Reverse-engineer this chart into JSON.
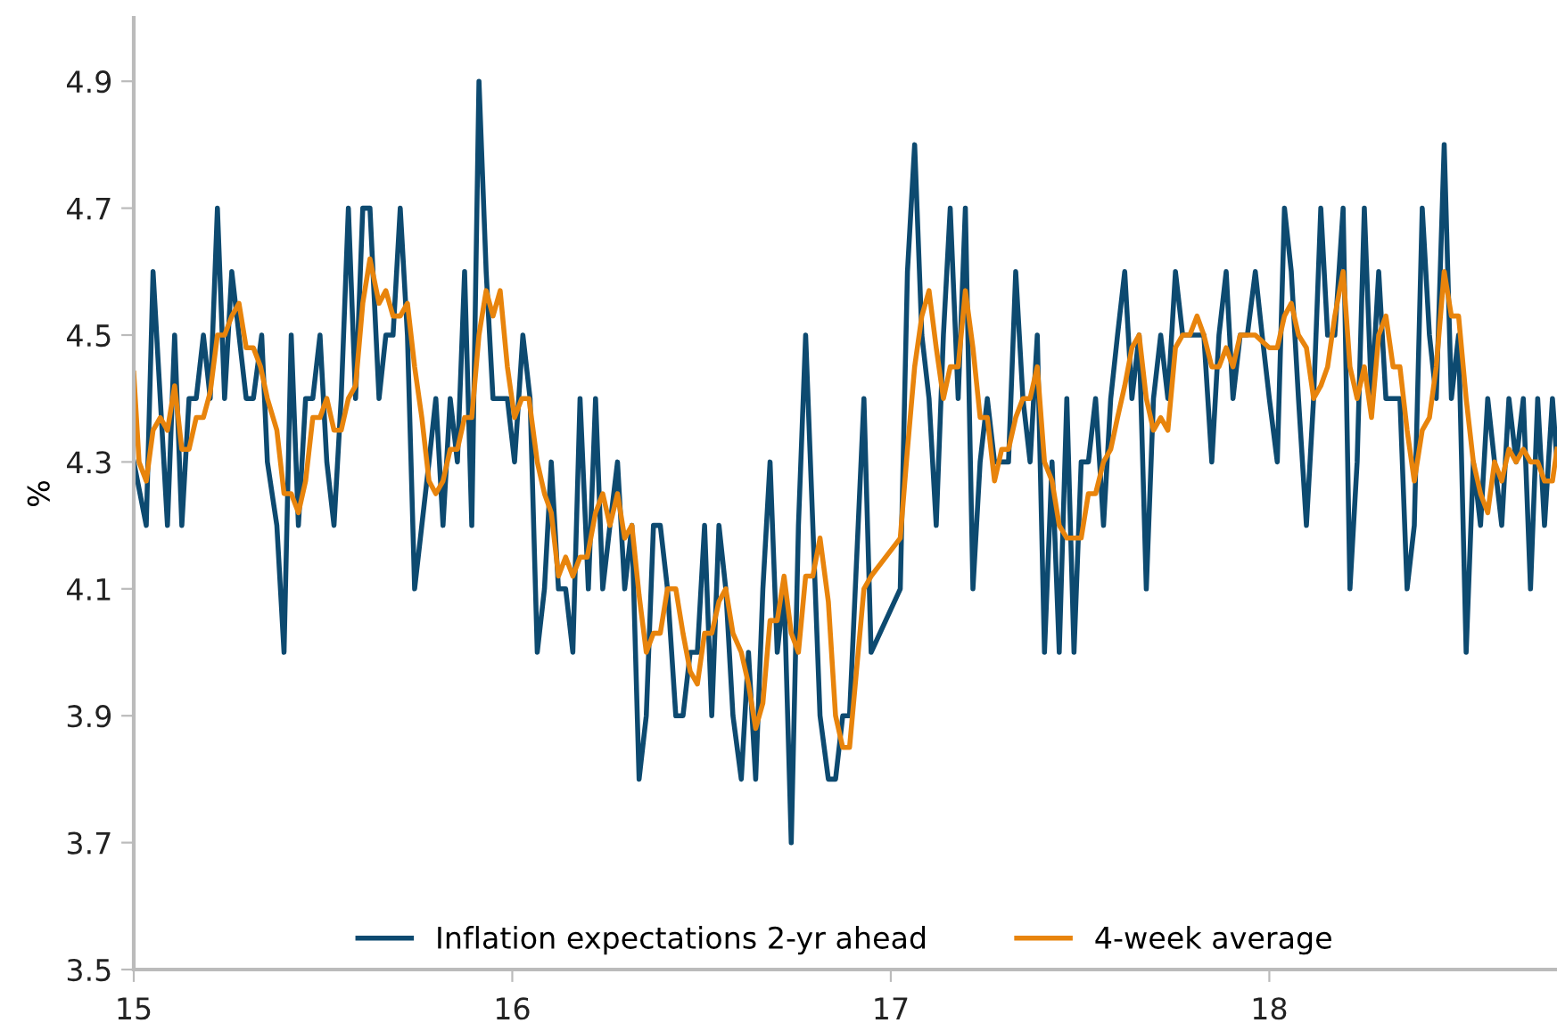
{
  "chart_data": {
    "type": "line",
    "ylabel": "%",
    "xlim": [
      15,
      18.76
    ],
    "xticks": [
      15,
      16,
      17,
      18
    ],
    "ylim": [
      3.5,
      5.0
    ],
    "yticks": [
      3.5,
      3.7,
      3.9,
      4.1,
      4.3,
      4.5,
      4.7,
      4.9
    ],
    "grid": false,
    "legend": "bottom",
    "marker": "none",
    "line_style": "solid",
    "series": [
      {
        "name": "Inflation expectations 2-yr ahead",
        "color": "#0d4a70",
        "x": [
          15.0,
          15.033,
          15.051,
          15.089,
          15.108,
          15.127,
          15.146,
          15.165,
          15.184,
          15.202,
          15.221,
          15.24,
          15.259,
          15.278,
          15.297,
          15.316,
          15.338,
          15.353,
          15.378,
          15.397,
          15.416,
          15.435,
          15.454,
          15.473,
          15.492,
          15.51,
          15.529,
          15.548,
          15.567,
          15.586,
          15.605,
          15.624,
          15.648,
          15.666,
          15.685,
          15.704,
          15.723,
          15.742,
          15.761,
          15.78,
          15.798,
          15.817,
          15.836,
          15.855,
          15.874,
          15.893,
          15.912,
          15.931,
          15.949,
          15.968,
          15.987,
          16.006,
          16.028,
          16.047,
          16.066,
          16.085,
          16.103,
          16.122,
          16.141,
          16.16,
          16.179,
          16.201,
          16.22,
          16.239,
          16.258,
          16.278,
          16.297,
          16.316,
          16.335,
          16.354,
          16.373,
          16.391,
          16.41,
          16.432,
          16.451,
          16.47,
          16.489,
          16.508,
          16.527,
          16.546,
          16.564,
          16.583,
          16.605,
          16.624,
          16.643,
          16.662,
          16.681,
          16.7,
          16.718,
          16.737,
          16.756,
          16.775,
          16.794,
          16.813,
          16.835,
          16.854,
          16.873,
          16.891,
          16.929,
          16.948,
          17.025,
          17.044,
          17.063,
          17.082,
          17.101,
          17.12,
          17.139,
          17.157,
          17.178,
          17.197,
          17.217,
          17.236,
          17.255,
          17.274,
          17.293,
          17.311,
          17.33,
          17.349,
          17.368,
          17.387,
          17.406,
          17.426,
          17.445,
          17.465,
          17.484,
          17.503,
          17.522,
          17.541,
          17.562,
          17.581,
          17.599,
          17.618,
          17.637,
          17.656,
          17.675,
          17.694,
          17.713,
          17.732,
          17.752,
          17.771,
          17.79,
          17.809,
          17.827,
          17.848,
          17.867,
          17.886,
          17.904,
          17.923,
          17.942,
          17.963,
          17.981,
          18.0,
          18.021,
          18.04,
          18.058,
          18.077,
          18.098,
          18.117,
          18.136,
          18.154,
          18.173,
          18.195,
          18.213,
          18.232,
          18.251,
          18.27,
          18.289,
          18.308,
          18.327,
          18.345,
          18.364,
          18.383,
          18.404,
          18.423,
          18.441,
          18.462,
          18.481,
          18.5,
          18.52,
          18.539,
          18.558,
          18.577,
          18.595,
          18.614,
          18.633,
          18.652,
          18.671,
          18.69,
          18.709,
          18.727,
          18.748,
          18.76
        ],
        "values": [
          4.3,
          4.2,
          4.6,
          4.2,
          4.5,
          4.2,
          4.4,
          4.4,
          4.5,
          4.4,
          4.7,
          4.4,
          4.6,
          4.5,
          4.4,
          4.4,
          4.5,
          4.3,
          4.2,
          4.0,
          4.5,
          4.2,
          4.4,
          4.4,
          4.5,
          4.3,
          4.2,
          4.4,
          4.7,
          4.4,
          4.7,
          4.7,
          4.4,
          4.5,
          4.5,
          4.7,
          4.5,
          4.1,
          4.2,
          4.3,
          4.4,
          4.2,
          4.4,
          4.3,
          4.6,
          4.2,
          4.9,
          4.6,
          4.4,
          4.4,
          4.4,
          4.3,
          4.5,
          4.4,
          4.0,
          4.1,
          4.3,
          4.1,
          4.1,
          4.0,
          4.4,
          4.1,
          4.4,
          4.1,
          4.2,
          4.3,
          4.1,
          4.2,
          3.8,
          3.9,
          4.2,
          4.2,
          4.1,
          3.9,
          3.9,
          4.0,
          4.0,
          4.2,
          3.9,
          4.2,
          4.1,
          3.9,
          3.8,
          4.0,
          3.8,
          4.1,
          4.3,
          4.0,
          4.1,
          3.7,
          4.2,
          4.5,
          4.2,
          3.9,
          3.8,
          3.8,
          3.9,
          3.9,
          4.4,
          4.0,
          4.1,
          4.6,
          4.8,
          4.5,
          4.4,
          4.2,
          4.5,
          4.7,
          4.4,
          4.7,
          4.1,
          4.3,
          4.4,
          4.3,
          4.3,
          4.3,
          4.6,
          4.4,
          4.3,
          4.5,
          4.0,
          4.3,
          4.0,
          4.4,
          4.0,
          4.3,
          4.3,
          4.4,
          4.2,
          4.4,
          4.5,
          4.6,
          4.4,
          4.5,
          4.1,
          4.4,
          4.5,
          4.4,
          4.6,
          4.5,
          4.5,
          4.5,
          4.5,
          4.3,
          4.5,
          4.6,
          4.4,
          4.5,
          4.5,
          4.6,
          4.5,
          4.4,
          4.3,
          4.7,
          4.6,
          4.4,
          4.2,
          4.4,
          4.7,
          4.5,
          4.5,
          4.7,
          4.1,
          4.3,
          4.7,
          4.4,
          4.6,
          4.4,
          4.4,
          4.4,
          4.1,
          4.2,
          4.7,
          4.5,
          4.4,
          4.8,
          4.4,
          4.5,
          4.0,
          4.3,
          4.2,
          4.4,
          4.3,
          4.2,
          4.4,
          4.3,
          4.4,
          4.1,
          4.4,
          4.2,
          4.4,
          4.3
        ]
      },
      {
        "name": "4-week average",
        "color": "#e8840c",
        "x": [
          15.0,
          15.014,
          15.033,
          15.051,
          15.07,
          15.089,
          15.108,
          15.127,
          15.146,
          15.165,
          15.184,
          15.202,
          15.221,
          15.24,
          15.259,
          15.278,
          15.297,
          15.316,
          15.335,
          15.353,
          15.378,
          15.397,
          15.416,
          15.435,
          15.454,
          15.473,
          15.492,
          15.51,
          15.529,
          15.548,
          15.567,
          15.586,
          15.605,
          15.624,
          15.648,
          15.666,
          15.685,
          15.704,
          15.723,
          15.742,
          15.761,
          15.78,
          15.798,
          15.817,
          15.836,
          15.855,
          15.874,
          15.893,
          15.912,
          15.931,
          15.949,
          15.968,
          15.987,
          16.006,
          16.025,
          16.044,
          16.066,
          16.085,
          16.103,
          16.122,
          16.141,
          16.16,
          16.179,
          16.198,
          16.22,
          16.239,
          16.258,
          16.278,
          16.297,
          16.316,
          16.335,
          16.354,
          16.373,
          16.391,
          16.41,
          16.432,
          16.451,
          16.47,
          16.489,
          16.508,
          16.527,
          16.546,
          16.564,
          16.583,
          16.605,
          16.624,
          16.643,
          16.662,
          16.681,
          16.7,
          16.718,
          16.737,
          16.756,
          16.775,
          16.794,
          16.813,
          16.835,
          16.854,
          16.873,
          16.891,
          16.929,
          16.948,
          17.025,
          17.044,
          17.063,
          17.082,
          17.101,
          17.12,
          17.139,
          17.157,
          17.178,
          17.197,
          17.217,
          17.236,
          17.255,
          17.274,
          17.293,
          17.311,
          17.33,
          17.349,
          17.368,
          17.387,
          17.406,
          17.426,
          17.445,
          17.465,
          17.484,
          17.503,
          17.522,
          17.541,
          17.562,
          17.581,
          17.599,
          17.618,
          17.637,
          17.656,
          17.675,
          17.694,
          17.713,
          17.732,
          17.752,
          17.771,
          17.79,
          17.809,
          17.827,
          17.848,
          17.867,
          17.886,
          17.904,
          17.923,
          17.942,
          17.963,
          17.981,
          18.0,
          18.021,
          18.04,
          18.058,
          18.077,
          18.098,
          18.117,
          18.136,
          18.154,
          18.173,
          18.195,
          18.213,
          18.232,
          18.251,
          18.27,
          18.289,
          18.308,
          18.327,
          18.345,
          18.364,
          18.383,
          18.404,
          18.423,
          18.441,
          18.462,
          18.481,
          18.5,
          18.52,
          18.539,
          18.558,
          18.577,
          18.595,
          18.614,
          18.633,
          18.652,
          18.671,
          18.69,
          18.709,
          18.727,
          18.748,
          18.76
        ],
        "values": [
          4.44,
          4.3,
          4.27,
          4.35,
          4.37,
          4.35,
          4.42,
          4.32,
          4.32,
          4.37,
          4.37,
          4.41,
          4.5,
          4.5,
          4.53,
          4.55,
          4.48,
          4.48,
          4.45,
          4.4,
          4.35,
          4.25,
          4.25,
          4.22,
          4.27,
          4.37,
          4.37,
          4.4,
          4.35,
          4.35,
          4.4,
          4.42,
          4.55,
          4.62,
          4.55,
          4.57,
          4.53,
          4.53,
          4.55,
          4.45,
          4.37,
          4.27,
          4.25,
          4.27,
          4.32,
          4.32,
          4.37,
          4.37,
          4.5,
          4.57,
          4.53,
          4.57,
          4.45,
          4.37,
          4.4,
          4.4,
          4.3,
          4.25,
          4.22,
          4.12,
          4.15,
          4.12,
          4.15,
          4.15,
          4.22,
          4.25,
          4.2,
          4.25,
          4.18,
          4.2,
          4.09,
          4.0,
          4.03,
          4.03,
          4.1,
          4.1,
          4.03,
          3.97,
          3.95,
          4.03,
          4.03,
          4.08,
          4.1,
          4.03,
          4.0,
          3.95,
          3.88,
          3.92,
          4.05,
          4.05,
          4.12,
          4.03,
          4.0,
          4.12,
          4.12,
          4.18,
          4.08,
          3.9,
          3.85,
          3.85,
          4.1,
          4.12,
          4.18,
          4.32,
          4.45,
          4.53,
          4.57,
          4.48,
          4.4,
          4.45,
          4.45,
          4.57,
          4.48,
          4.37,
          4.37,
          4.27,
          4.32,
          4.32,
          4.37,
          4.4,
          4.4,
          4.45,
          4.3,
          4.27,
          4.2,
          4.18,
          4.18,
          4.18,
          4.25,
          4.25,
          4.3,
          4.32,
          4.37,
          4.42,
          4.48,
          4.5,
          4.4,
          4.35,
          4.37,
          4.35,
          4.48,
          4.5,
          4.5,
          4.53,
          4.5,
          4.45,
          4.45,
          4.48,
          4.45,
          4.5,
          4.5,
          4.5,
          4.49,
          4.48,
          4.48,
          4.53,
          4.55,
          4.5,
          4.48,
          4.4,
          4.42,
          4.45,
          4.53,
          4.6,
          4.45,
          4.4,
          4.45,
          4.37,
          4.5,
          4.53,
          4.45,
          4.45,
          4.35,
          4.27,
          4.35,
          4.37,
          4.45,
          4.6,
          4.53,
          4.53,
          4.4,
          4.3,
          4.25,
          4.22,
          4.3,
          4.27,
          4.32,
          4.3,
          4.32,
          4.3,
          4.3,
          4.27,
          4.27,
          4.32
        ]
      }
    ]
  }
}
